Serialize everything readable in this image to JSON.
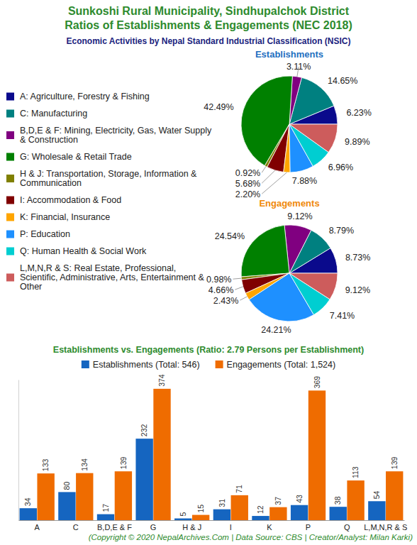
{
  "header": {
    "title": [
      "Sunkoshi Rural Municipality, Sindhupalchok District",
      "Ratios of Establishments & Engagements (NEC 2018)"
    ],
    "subtitle": "Economic Activities by Nepal Standard Industrial Classification (NSIC)"
  },
  "chart_data": [
    {
      "type": "pie",
      "title": "Establishments",
      "categories": [
        "A: Agriculture, Forestry & Fishing",
        "C: Manufacturing",
        "B,D,E & F: Mining, Electricity, Gas, Water Supply & Construction",
        "G: Wholesale & Retail Trade",
        "H & J: Transportation, Storage, Information & Communication",
        "I: Accommodation & Food",
        "K: Financial, Insurance",
        "P: Education",
        "Q: Human Health & Social Work",
        "L,M,N,R & S: Real Estate, Professional, Scientific, Administrative, Arts, Entertainment & Other"
      ],
      "values": [
        6.23,
        14.65,
        3.11,
        42.49,
        0.92,
        5.68,
        2.2,
        7.88,
        6.96,
        9.89
      ],
      "value_labels": [
        "6.23%",
        "14.65%",
        "3.11%",
        "42.49%",
        "0.92%",
        "5.68%",
        "2.20%",
        "7.88%",
        "6.96%",
        "9.89%"
      ],
      "colors": [
        "#0a0a8c",
        "#008080",
        "#800080",
        "#008000",
        "#808000",
        "#800000",
        "#ffa500",
        "#1e90ff",
        "#00ced1",
        "#cd5c5c"
      ],
      "data_labels": true
    },
    {
      "type": "pie",
      "title": "Engagements",
      "values": [
        8.73,
        8.79,
        9.12,
        24.54,
        0.98,
        4.66,
        2.43,
        24.21,
        7.41,
        9.12
      ],
      "value_labels": [
        "8.73%",
        "8.79%",
        "9.12%",
        "24.54%",
        "0.98%",
        "4.66%",
        "2.43%",
        "24.21%",
        "7.41%",
        "9.12%"
      ],
      "colors": [
        "#0a0a8c",
        "#008080",
        "#800080",
        "#008000",
        "#808000",
        "#800000",
        "#ffa500",
        "#1e90ff",
        "#00ced1",
        "#cd5c5c"
      ],
      "data_labels": true
    },
    {
      "type": "bar",
      "title": "Establishments vs. Engagements (Ratio: 2.79 Persons per Establishment)",
      "categories": [
        "A",
        "C",
        "B,D,E & F",
        "G",
        "H & J",
        "I",
        "K",
        "P",
        "Q",
        "L,M,N,R & S"
      ],
      "series": [
        {
          "name": "Establishments (Total: 546)",
          "color": "#1565c0",
          "values": [
            34,
            80,
            17,
            232,
            5,
            31,
            12,
            43,
            38,
            54
          ]
        },
        {
          "name": "Engagements (Total: 1,524)",
          "color": "#ef6c00",
          "values": [
            133,
            134,
            139,
            374,
            15,
            71,
            37,
            369,
            113,
            139
          ]
        }
      ],
      "ylim": [
        0,
        400
      ],
      "yticks": [],
      "data_labels": true,
      "tick_labels": "x",
      "legend": "top"
    }
  ],
  "footer": "(Copyright © 2020 NepalArchives.Com | Data Source: CBS | Creator/Analyst: Milan Karki)"
}
